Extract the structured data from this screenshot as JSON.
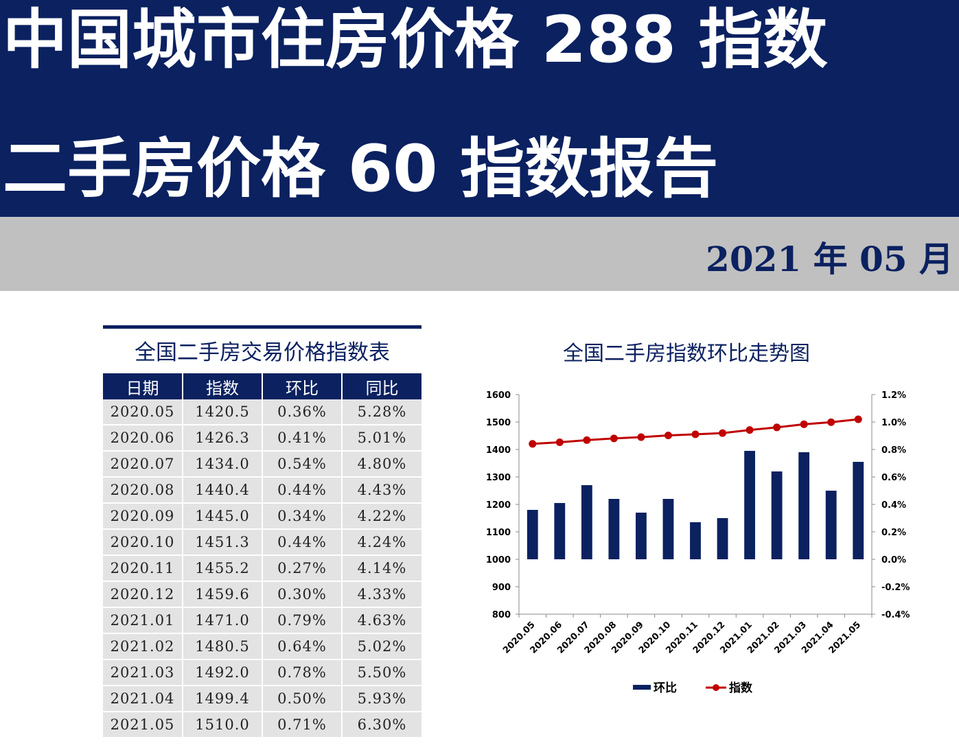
{
  "header": {
    "title_line1": "中国城市住房价格 288 指数",
    "title_line2": "二手房价格 60 指数报告",
    "report_date": "2021 年 05 月"
  },
  "colors": {
    "navy": "#0b2160",
    "red": "#c00000",
    "gray_band": "#c0c0c0",
    "cell_gray": "#e3e3e3"
  },
  "table": {
    "title": "全国二手房交易价格指数表",
    "headers": [
      "日期",
      "指数",
      "环比",
      "同比"
    ],
    "rows": [
      [
        "2020.05",
        "1420.5",
        "0.36%",
        "5.28%"
      ],
      [
        "2020.06",
        "1426.3",
        "0.41%",
        "5.01%"
      ],
      [
        "2020.07",
        "1434.0",
        "0.54%",
        "4.80%"
      ],
      [
        "2020.08",
        "1440.4",
        "0.44%",
        "4.43%"
      ],
      [
        "2020.09",
        "1445.0",
        "0.34%",
        "4.22%"
      ],
      [
        "2020.10",
        "1451.3",
        "0.44%",
        "4.24%"
      ],
      [
        "2020.11",
        "1455.2",
        "0.27%",
        "4.14%"
      ],
      [
        "2020.12",
        "1459.6",
        "0.30%",
        "4.33%"
      ],
      [
        "2021.01",
        "1471.0",
        "0.79%",
        "4.63%"
      ],
      [
        "2021.02",
        "1480.5",
        "0.64%",
        "5.02%"
      ],
      [
        "2021.03",
        "1492.0",
        "0.78%",
        "5.50%"
      ],
      [
        "2021.04",
        "1499.4",
        "0.50%",
        "5.93%"
      ],
      [
        "2021.05",
        "1510.0",
        "0.71%",
        "6.30%"
      ]
    ]
  },
  "chart_data": {
    "type": "bar+line",
    "title": "全国二手房指数环比走势图",
    "categories": [
      "2020.05",
      "2020.06",
      "2020.07",
      "2020.08",
      "2020.09",
      "2020.10",
      "2020.11",
      "2020.12",
      "2021.01",
      "2021.02",
      "2021.03",
      "2021.04",
      "2021.05"
    ],
    "series": [
      {
        "name": "环比",
        "type": "bar",
        "axis": "right",
        "color": "#0b2160",
        "values": [
          0.36,
          0.41,
          0.54,
          0.44,
          0.34,
          0.44,
          0.27,
          0.3,
          0.79,
          0.64,
          0.78,
          0.5,
          0.71
        ]
      },
      {
        "name": "指数",
        "type": "line",
        "axis": "left",
        "color": "#c00000",
        "values": [
          1420.5,
          1426.3,
          1434.0,
          1440.4,
          1445.0,
          1451.3,
          1455.2,
          1459.6,
          1471.0,
          1480.5,
          1492.0,
          1499.4,
          1510.0
        ]
      }
    ],
    "y_left": {
      "min": 800,
      "max": 1600,
      "step": 100,
      "ticks": [
        "800",
        "900",
        "1000",
        "1100",
        "1200",
        "1300",
        "1400",
        "1500",
        "1600"
      ]
    },
    "y_right": {
      "min": -0.4,
      "max": 1.2,
      "step": 0.2,
      "unit": "%",
      "ticks": [
        "-0.4%",
        "-0.2%",
        "0.0%",
        "0.2%",
        "0.4%",
        "0.6%",
        "0.8%",
        "1.0%",
        "1.2%"
      ]
    },
    "grid": false,
    "legend_position": "bottom"
  }
}
